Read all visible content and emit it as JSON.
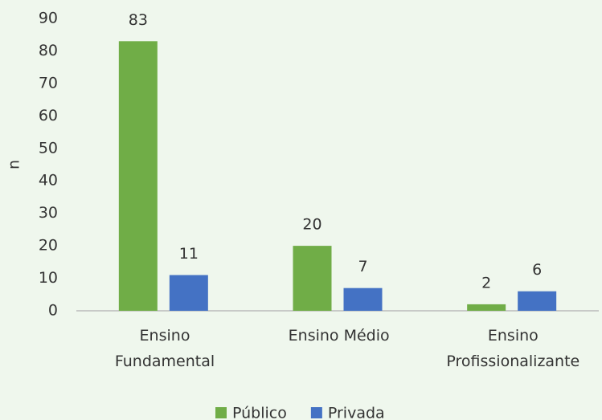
{
  "chart_data": {
    "type": "bar",
    "ylabel": "n",
    "categories": [
      "Ensino\nFundamental",
      "Ensino Médio",
      "Ensino\nProfissionalizante"
    ],
    "series": [
      {
        "name": "Público",
        "color": "#70ad47",
        "values": [
          83,
          20,
          2
        ]
      },
      {
        "name": "Privada",
        "color": "#4472c4",
        "values": [
          11,
          7,
          6
        ]
      }
    ],
    "ylim": [
      0,
      90
    ],
    "yticks": [
      0,
      10,
      20,
      30,
      40,
      50,
      60,
      70,
      80,
      90
    ],
    "grid": false,
    "legend": "bottom"
  }
}
